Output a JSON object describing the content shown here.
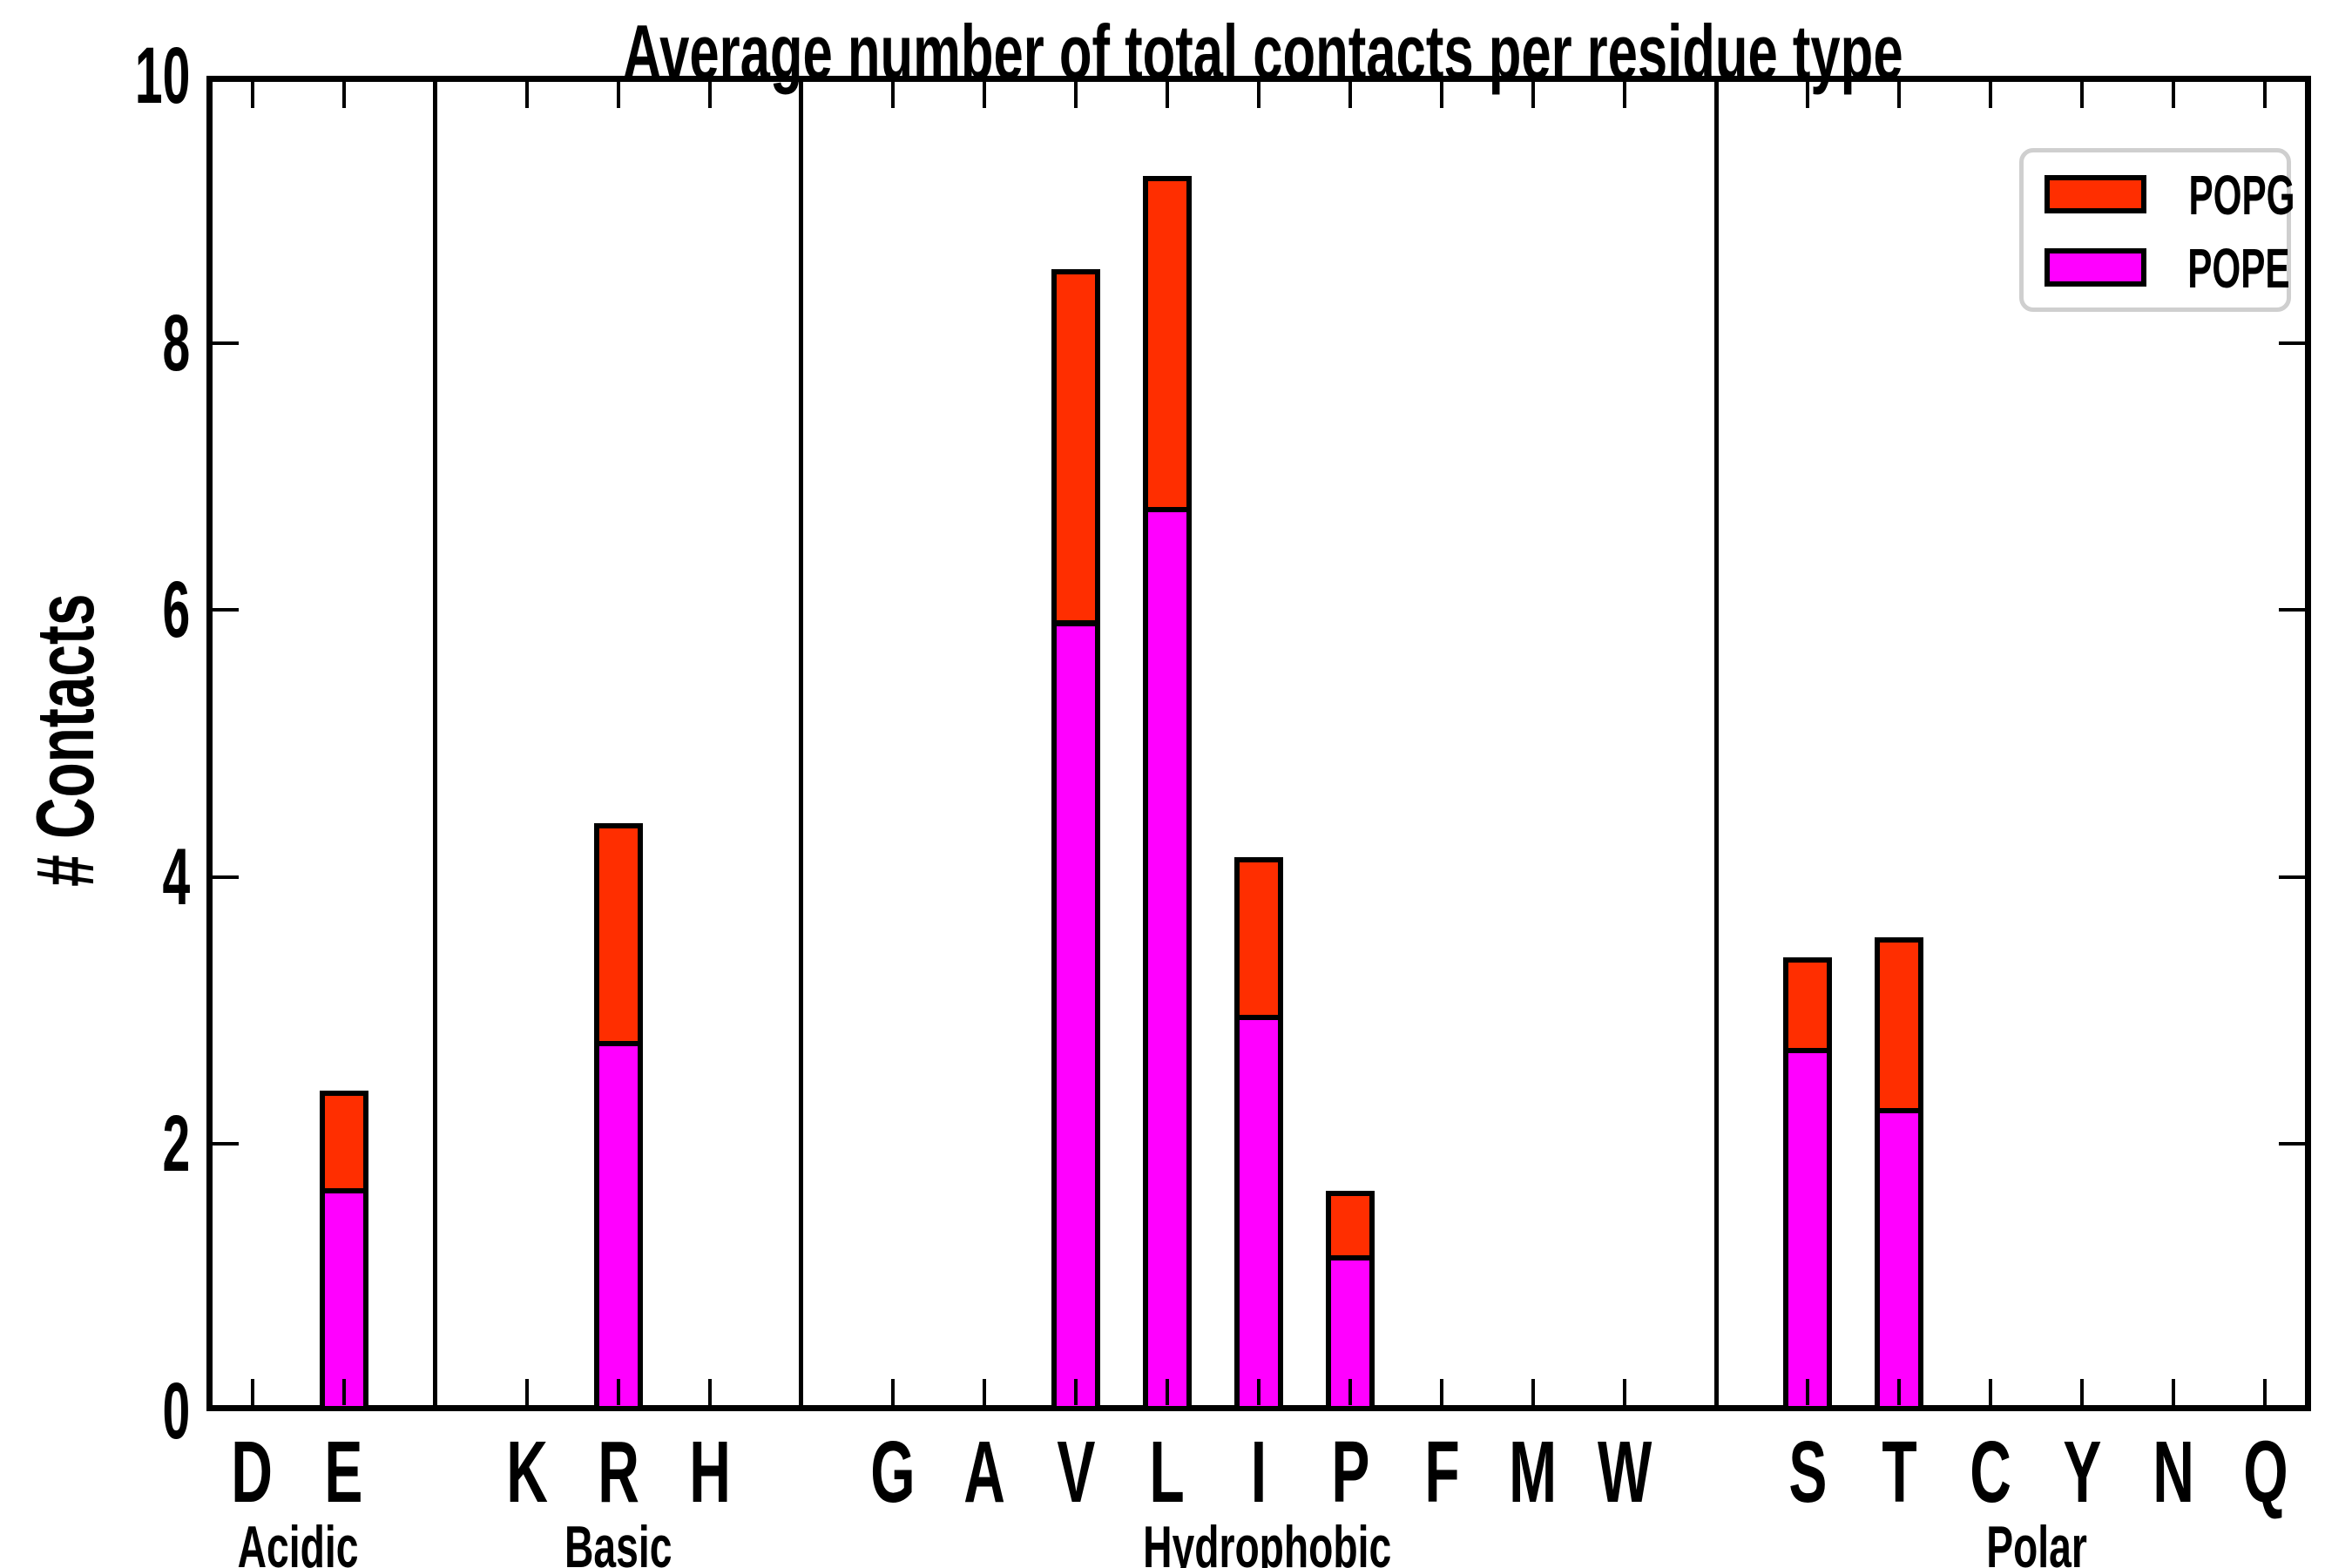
{
  "chart_data": {
    "type": "bar",
    "stacked": true,
    "title": "Average number of total contacts per residue type",
    "ylabel": "# Contacts",
    "ylim": [
      0,
      10
    ],
    "yticks": [
      0,
      2,
      4,
      6,
      8,
      10
    ],
    "grid": false,
    "legend": {
      "position": "top-right",
      "entries": [
        {
          "name": "POPG",
          "color": "#ff2e00"
        },
        {
          "name": "POPE",
          "color": "#ff00ff"
        }
      ]
    },
    "stack_order_bottom_to_top": [
      "POPE",
      "POPG"
    ],
    "colors": {
      "POPE": "#ff00ff",
      "POPG": "#ff2e00"
    },
    "axis_color": "#000000",
    "background": "#ffffff",
    "groups": [
      {
        "label": "Acidic",
        "categories": [
          "D",
          "E"
        ],
        "series": {
          "POPE": [
            0,
            1.65
          ],
          "POPG": [
            0,
            0.75
          ]
        }
      },
      {
        "label": "Basic",
        "categories": [
          "K",
          "R",
          "H"
        ],
        "series": {
          "POPE": [
            0,
            2.75,
            0
          ],
          "POPG": [
            0,
            1.65,
            0
          ]
        }
      },
      {
        "label": "Hydrophobic",
        "categories": [
          "G",
          "A",
          "V",
          "L",
          "I",
          "P",
          "F",
          "M",
          "W"
        ],
        "series": {
          "POPE": [
            0,
            0,
            5.9,
            6.75,
            2.95,
            1.15,
            0,
            0,
            0
          ],
          "POPG": [
            0,
            0,
            2.65,
            2.5,
            1.2,
            0.5,
            0,
            0,
            0
          ]
        }
      },
      {
        "label": "Polar",
        "categories": [
          "S",
          "T",
          "C",
          "Y",
          "N",
          "Q"
        ],
        "series": {
          "POPE": [
            2.7,
            2.25,
            0,
            0,
            0,
            0
          ],
          "POPG": [
            0.7,
            1.3,
            0,
            0,
            0,
            0
          ]
        }
      }
    ]
  }
}
